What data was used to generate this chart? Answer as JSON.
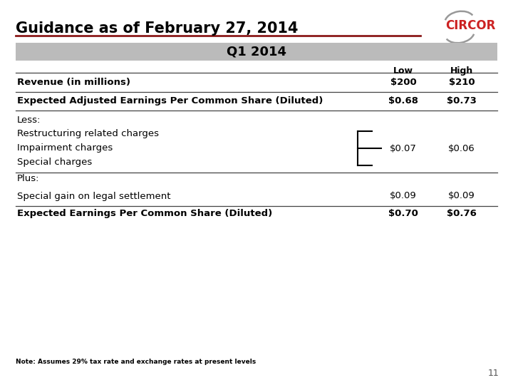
{
  "title": "Guidance as of February 27, 2014",
  "subtitle": "Q1 2014",
  "bg_color": "#ffffff",
  "header_bg": "#bbbbbb",
  "header_text_color": "#000000",
  "col_low": "Low",
  "col_high": "High",
  "rows": [
    {
      "label": "Revenue (in millions)",
      "low": "$200",
      "high": "$210",
      "bold": true,
      "line_below": true
    },
    {
      "label": "Expected Adjusted Earnings Per Common Share (Diluted)",
      "low": "$0.68",
      "high": "$0.73",
      "bold": true,
      "line_below": true
    },
    {
      "label": "Less:",
      "low": "",
      "high": "",
      "bold": false,
      "line_below": false
    },
    {
      "label": "Restructuring related charges",
      "low": "",
      "high": "",
      "bold": false,
      "line_below": false
    },
    {
      "label": "Impairment charges",
      "low": "$0.07",
      "high": "$0.06",
      "bold": false,
      "line_below": false
    },
    {
      "label": "Special charges",
      "low": "",
      "high": "",
      "bold": false,
      "line_below": true
    },
    {
      "label": "Plus:",
      "low": "",
      "high": "",
      "bold": false,
      "line_below": false
    },
    {
      "label": "Special gain on legal settlement",
      "low": "$0.09",
      "high": "$0.09",
      "bold": false,
      "line_below": true
    },
    {
      "label": "Expected Earnings Per Common Share (Diluted)",
      "low": "$0.70",
      "high": "$0.76",
      "bold": true,
      "line_below": false
    }
  ],
  "note": "Note: Assumes 29% tax rate and exchange rates at present levels",
  "page_num": "11",
  "circor_color": "#cc2222",
  "title_color": "#000000",
  "red_line_color": "#8b1a1a",
  "table_line_color": "#444444"
}
